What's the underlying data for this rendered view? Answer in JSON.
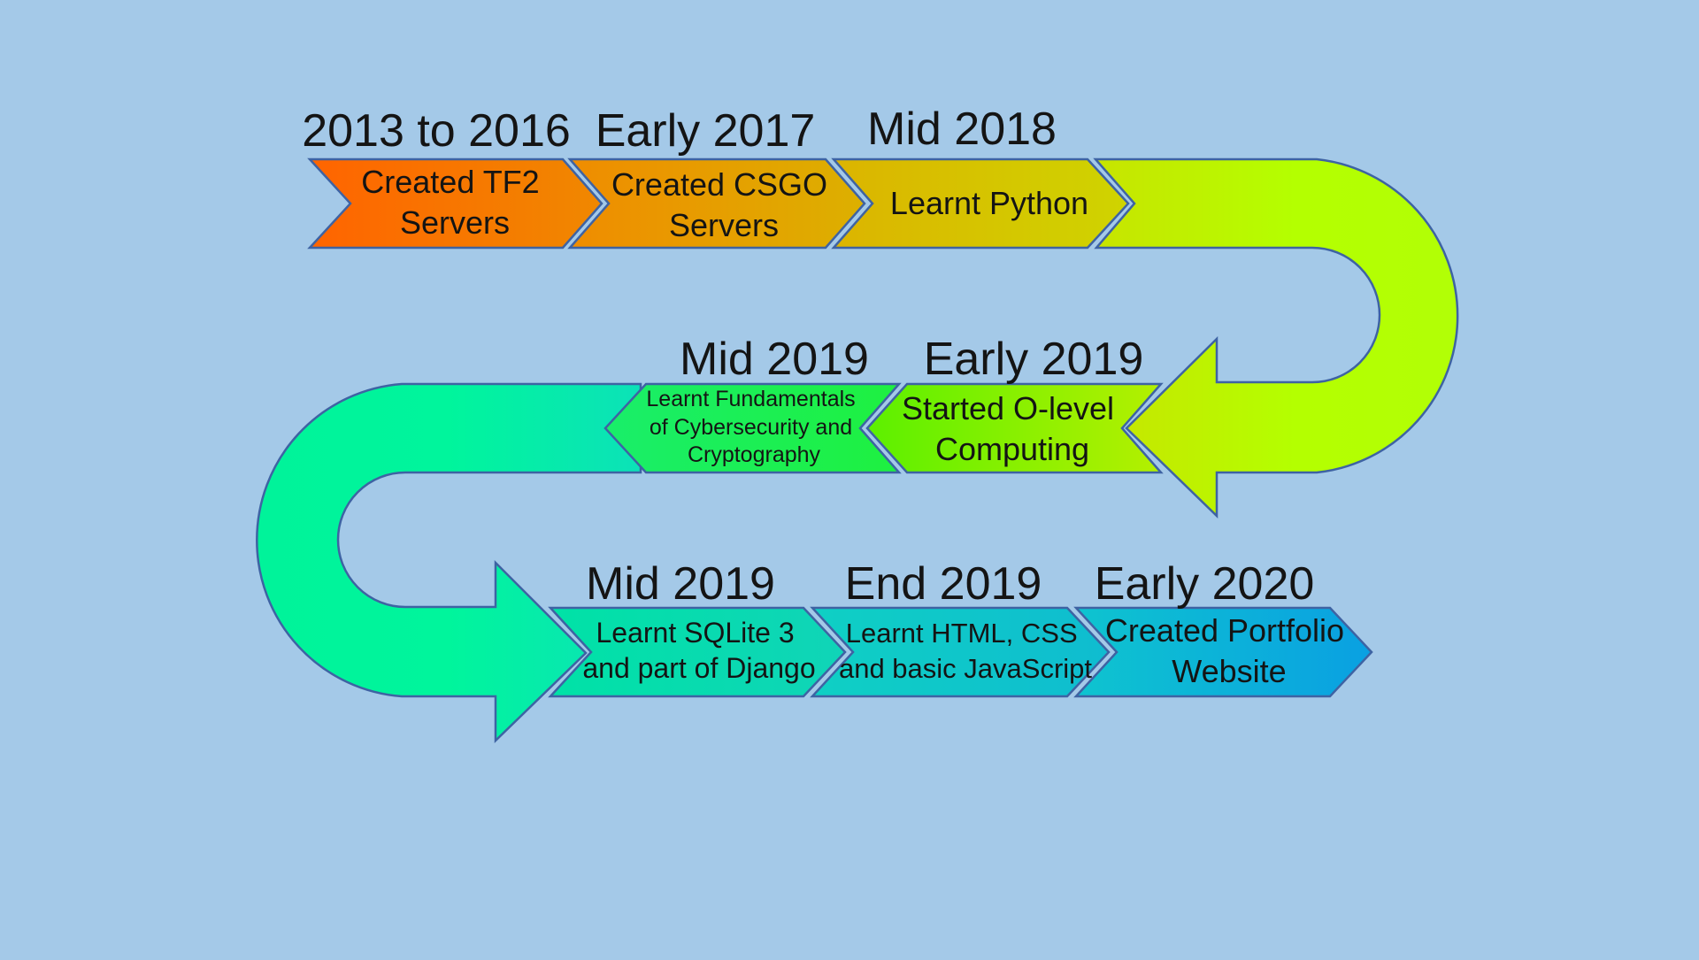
{
  "theme": {
    "background": "#a4c9e8",
    "outline": "#3e63a3",
    "text": "#141414"
  },
  "milestones": [
    {
      "date": "2013 to 2016",
      "lines": [
        "Created TF2",
        "Servers"
      ],
      "color": "#ff6a00"
    },
    {
      "date": "Early 2017",
      "lines": [
        "Created CSGO",
        "Servers"
      ],
      "color": "#eb9a00"
    },
    {
      "date": "Mid 2018",
      "lines": [
        "Learnt Python"
      ],
      "color": "#d8c800"
    },
    {
      "date": "Early 2019",
      "lines": [
        "Started O-level",
        "Computing"
      ],
      "color": "#a5f000"
    },
    {
      "date": "Mid 2019",
      "lines": [
        "Learnt Fundamentals",
        "of Cybersecurity and",
        "Cryptography"
      ],
      "color": "#22f24a"
    },
    {
      "date": "Mid 2019",
      "lines": [
        "Learnt SQLite 3",
        "and part of Django"
      ],
      "color": "#1adca0"
    },
    {
      "date": "End 2019",
      "lines": [
        "Learnt HTML, CSS",
        "and basic JavaScript"
      ],
      "color": "#11ccc2"
    },
    {
      "date": "Early 2020",
      "lines": [
        "Created Portfolio",
        "Website"
      ],
      "color": "#0fa6dc"
    }
  ]
}
